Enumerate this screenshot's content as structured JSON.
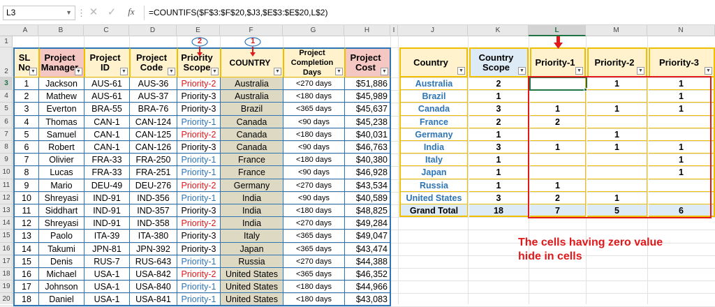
{
  "formula_bar": {
    "name_box": "L3",
    "cancel_icon": "✕",
    "enter_icon": "✓",
    "fx_label": "fx",
    "formula": "=COUNTIFS($F$3:$F$20,$J3,$E$3:$E$20,L$2)"
  },
  "columns": [
    "A",
    "B",
    "C",
    "D",
    "E",
    "F",
    "G",
    "H",
    "I",
    "J",
    "K",
    "L",
    "M",
    "N"
  ],
  "rows": [
    "1",
    "2",
    "3",
    "4",
    "5",
    "6",
    "7",
    "8",
    "9",
    "10",
    "11",
    "12",
    "13",
    "14",
    "15",
    "16",
    "17",
    "18",
    "19",
    "20"
  ],
  "left_table": {
    "headers": {
      "sl": "SL No",
      "manager": "Project Manager",
      "pid": "Project ID",
      "pcode": "Project Code",
      "scope": "Priority Scope",
      "country": "COUNTRY",
      "days": "Project Completion Days",
      "cost": "Project Cost"
    },
    "callout_scope": "2",
    "callout_country": "1",
    "rows": [
      {
        "sl": "1",
        "manager": "Jackson",
        "pid": "AUS-61",
        "pcode": "AUS-36",
        "scope": "Priority-2",
        "country": "Australia",
        "days": "<270 days",
        "cost": "$51,886"
      },
      {
        "sl": "2",
        "manager": "Mathew",
        "pid": "AUS-61",
        "pcode": "AUS-37",
        "scope": "Priority-3",
        "country": "Australia",
        "days": "<180 days",
        "cost": "$45,989"
      },
      {
        "sl": "3",
        "manager": "Everton",
        "pid": "BRA-55",
        "pcode": "BRA-76",
        "scope": "Priority-3",
        "country": "Brazil",
        "days": "<365 days",
        "cost": "$45,637"
      },
      {
        "sl": "4",
        "manager": "Thomas",
        "pid": "CAN-1",
        "pcode": "CAN-124",
        "scope": "Priority-1",
        "country": "Canada",
        "days": "<90 days",
        "cost": "$45,238"
      },
      {
        "sl": "5",
        "manager": "Samuel",
        "pid": "CAN-1",
        "pcode": "CAN-125",
        "scope": "Priority-2",
        "country": "Canada",
        "days": "<180 days",
        "cost": "$40,031"
      },
      {
        "sl": "6",
        "manager": "Robert",
        "pid": "CAN-1",
        "pcode": "CAN-126",
        "scope": "Priority-3",
        "country": "Canada",
        "days": "<90 days",
        "cost": "$46,763"
      },
      {
        "sl": "7",
        "manager": "Olivier",
        "pid": "FRA-33",
        "pcode": "FRA-250",
        "scope": "Priority-1",
        "country": "France",
        "days": "<180 days",
        "cost": "$40,380"
      },
      {
        "sl": "8",
        "manager": "Lucas",
        "pid": "FRA-33",
        "pcode": "FRA-251",
        "scope": "Priority-1",
        "country": "France",
        "days": "<90 days",
        "cost": "$46,928"
      },
      {
        "sl": "9",
        "manager": "Mario",
        "pid": "DEU-49",
        "pcode": "DEU-276",
        "scope": "Priority-2",
        "country": "Germany",
        "days": "<270 days",
        "cost": "$43,534"
      },
      {
        "sl": "10",
        "manager": "Shreyasi",
        "pid": "IND-91",
        "pcode": "IND-356",
        "scope": "Priority-1",
        "country": "India",
        "days": "<90 days",
        "cost": "$40,589"
      },
      {
        "sl": "11",
        "manager": "Siddhart",
        "pid": "IND-91",
        "pcode": "IND-357",
        "scope": "Priority-3",
        "country": "India",
        "days": "<180 days",
        "cost": "$48,825"
      },
      {
        "sl": "12",
        "manager": "Shreyasi",
        "pid": "IND-91",
        "pcode": "IND-358",
        "scope": "Priority-2",
        "country": "India",
        "days": "<270 days",
        "cost": "$49,284"
      },
      {
        "sl": "13",
        "manager": "Paolo",
        "pid": "ITA-39",
        "pcode": "ITA-380",
        "scope": "Priority-3",
        "country": "Italy",
        "days": "<365 days",
        "cost": "$49,047"
      },
      {
        "sl": "14",
        "manager": "Takumi",
        "pid": "JPN-81",
        "pcode": "JPN-392",
        "scope": "Priority-3",
        "country": "Japan",
        "days": "<365 days",
        "cost": "$43,474"
      },
      {
        "sl": "15",
        "manager": "Denis",
        "pid": "RUS-7",
        "pcode": "RUS-643",
        "scope": "Priority-1",
        "country": "Russia",
        "days": "<270 days",
        "cost": "$44,388"
      },
      {
        "sl": "16",
        "manager": "Michael",
        "pid": "USA-1",
        "pcode": "USA-842",
        "scope": "Priority-2",
        "country": "United States",
        "days": "<365 days",
        "cost": "$46,352"
      },
      {
        "sl": "17",
        "manager": "Johnson",
        "pid": "USA-1",
        "pcode": "USA-840",
        "scope": "Priority-1",
        "country": "United States",
        "days": "<180 days",
        "cost": "$44,966"
      },
      {
        "sl": "18",
        "manager": "Daniel",
        "pid": "USA-1",
        "pcode": "USA-841",
        "scope": "Priority-1",
        "country": "United States",
        "days": "<180 days",
        "cost": "$43,083"
      }
    ]
  },
  "right_table": {
    "headers": {
      "country": "Country",
      "scope": "Country Scope",
      "p1": "Priority-1",
      "p2": "Priority-2",
      "p3": "Priority-3"
    },
    "rows": [
      {
        "country": "Australia",
        "scope": "2",
        "p1": "",
        "p2": "1",
        "p3": "1"
      },
      {
        "country": "Brazil",
        "scope": "1",
        "p1": "",
        "p2": "",
        "p3": "1"
      },
      {
        "country": "Canada",
        "scope": "3",
        "p1": "1",
        "p2": "1",
        "p3": "1"
      },
      {
        "country": "France",
        "scope": "2",
        "p1": "2",
        "p2": "",
        "p3": ""
      },
      {
        "country": "Germany",
        "scope": "1",
        "p1": "",
        "p2": "1",
        "p3": ""
      },
      {
        "country": "India",
        "scope": "3",
        "p1": "1",
        "p2": "1",
        "p3": "1"
      },
      {
        "country": "Italy",
        "scope": "1",
        "p1": "",
        "p2": "",
        "p3": "1"
      },
      {
        "country": "Japan",
        "scope": "1",
        "p1": "",
        "p2": "",
        "p3": "1"
      },
      {
        "country": "Russia",
        "scope": "1",
        "p1": "1",
        "p2": "",
        "p3": ""
      },
      {
        "country": "United States",
        "scope": "3",
        "p1": "2",
        "p2": "1",
        "p3": ""
      }
    ],
    "total": {
      "label": "Grand Total",
      "scope": "18",
      "p1": "7",
      "p2": "5",
      "p3": "6"
    }
  },
  "annotation": {
    "line1": "The cells having zero value",
    "line2": "hide in cells"
  },
  "colors": {
    "blue": "#2e75b6",
    "red": "#e0191b",
    "pink_header": "#f4c7c3",
    "country_fill": "#ddd9c3",
    "right_header": "#fff2cc",
    "scope_header": "#ddebf7",
    "total_fill": "#ddebf7",
    "selection": "#217346"
  }
}
